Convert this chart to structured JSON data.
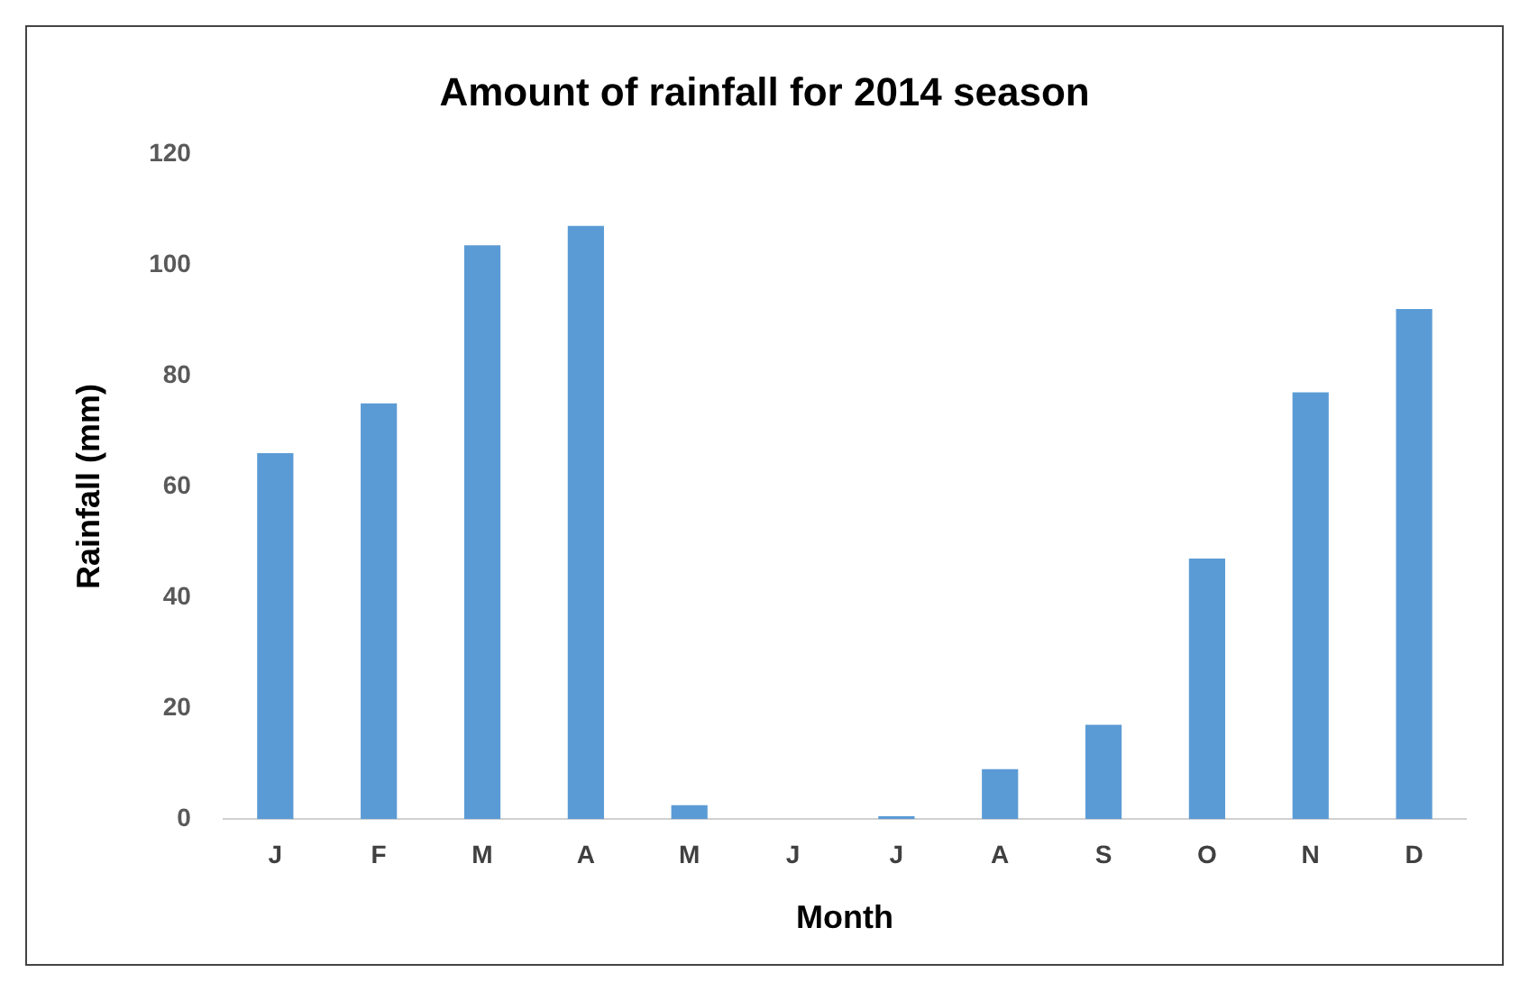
{
  "chart_data": {
    "type": "bar",
    "title": "Amount of rainfall for 2014 season",
    "xlabel": "Month",
    "ylabel": "Rainfall (mm)",
    "categories": [
      "J",
      "F",
      "M",
      "A",
      "M",
      "J",
      "J",
      "A",
      "S",
      "O",
      "N",
      "D"
    ],
    "values": [
      66,
      75,
      103.5,
      107,
      2.5,
      0,
      0.5,
      9,
      17,
      47,
      77,
      92
    ],
    "color": "#5b9bd5",
    "ylim": [
      0,
      120
    ],
    "yticks": [
      0,
      20,
      40,
      60,
      80,
      100,
      120
    ],
    "grid": false
  }
}
